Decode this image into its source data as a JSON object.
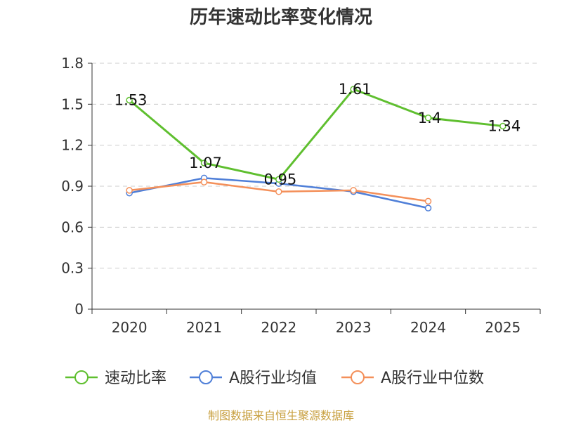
{
  "chart_data": {
    "type": "line",
    "title": "历年速动比率变化情况",
    "categories": [
      "2020",
      "2021",
      "2022",
      "2023",
      "2024",
      "2025"
    ],
    "ylim": [
      0,
      1.8
    ],
    "yticks": [
      "0",
      "0.3",
      "0.6",
      "0.9",
      "1.2",
      "1.5",
      "1.8"
    ],
    "series": [
      {
        "name": "速动比率",
        "color": "#5fbf2f",
        "values": [
          1.53,
          1.07,
          0.95,
          1.61,
          1.4,
          1.34
        ],
        "labels": [
          "1.53",
          "1.07",
          "0.95",
          "1.61",
          "1.4",
          "1.34"
        ]
      },
      {
        "name": "A股行业均值",
        "color": "#4f7fd8",
        "values": [
          0.85,
          0.96,
          0.92,
          0.86,
          0.74,
          null
        ]
      },
      {
        "name": "A股行业中位数",
        "color": "#f4905a",
        "values": [
          0.87,
          0.93,
          0.86,
          0.87,
          0.79,
          null
        ]
      }
    ],
    "legend_position": "bottom",
    "grid": true
  },
  "source": "制图数据来自恒生聚源数据库"
}
